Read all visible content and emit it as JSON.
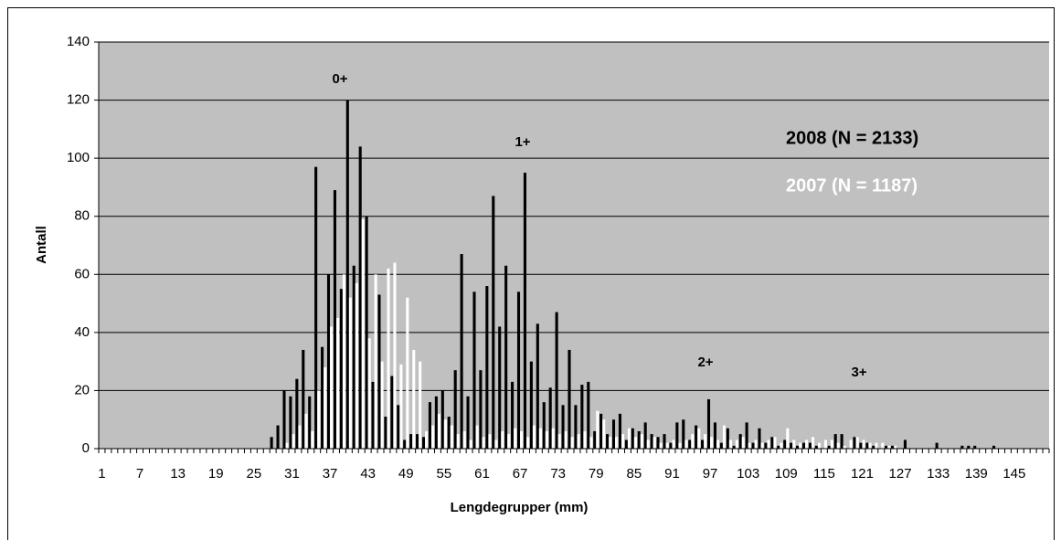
{
  "chart_data": {
    "type": "bar",
    "x_label": "Lengdegrupper (mm)",
    "y_label": "Antall",
    "categories": [
      "1",
      null,
      null,
      null,
      null,
      null,
      "7",
      null,
      null,
      null,
      null,
      null,
      "13",
      null,
      null,
      null,
      null,
      null,
      "19",
      null,
      null,
      null,
      null,
      null,
      "25",
      null,
      null,
      null,
      null,
      null,
      "31",
      null,
      null,
      null,
      null,
      null,
      "37",
      null,
      null,
      null,
      null,
      null,
      "43",
      null,
      null,
      null,
      null,
      null,
      "49",
      null,
      null,
      null,
      null,
      null,
      "55",
      null,
      null,
      null,
      null,
      null,
      "61",
      null,
      null,
      null,
      null,
      null,
      "67",
      null,
      null,
      null,
      null,
      null,
      "73",
      null,
      null,
      null,
      null,
      null,
      "79",
      null,
      null,
      null,
      null,
      null,
      "85",
      null,
      null,
      null,
      null,
      null,
      "91",
      null,
      null,
      null,
      null,
      null,
      "97",
      null,
      null,
      null,
      null,
      null,
      "103",
      null,
      null,
      null,
      null,
      null,
      "109",
      null,
      null,
      null,
      null,
      null,
      "115",
      null,
      null,
      null,
      null,
      null,
      "121",
      null,
      null,
      null,
      null,
      null,
      "127",
      null,
      null,
      null,
      null,
      null,
      "133",
      null,
      null,
      null,
      null,
      null,
      "139",
      null,
      null,
      null,
      null,
      null,
      "145",
      null,
      null,
      null,
      null,
      null
    ],
    "series": [
      {
        "name": "2008 (N = 2133)",
        "color": "#000000",
        "values": [
          0,
          0,
          0,
          0,
          0,
          0,
          0,
          0,
          0,
          0,
          0,
          0,
          0,
          0,
          0,
          0,
          0,
          0,
          0,
          0,
          0,
          0,
          0,
          0,
          0,
          0,
          0,
          4,
          8,
          20,
          18,
          24,
          34,
          18,
          97,
          35,
          60,
          89,
          55,
          120,
          63,
          104,
          80,
          23,
          53,
          11,
          25,
          15,
          3,
          5,
          5,
          4,
          16,
          18,
          20,
          11,
          27,
          67,
          18,
          54,
          27,
          56,
          87,
          42,
          63,
          23,
          54,
          95,
          30,
          43,
          16,
          21,
          47,
          15,
          34,
          15,
          22,
          23,
          6,
          12,
          5,
          10,
          12,
          3,
          7,
          6,
          9,
          5,
          4,
          5,
          2,
          9,
          10,
          3,
          8,
          3,
          17,
          9,
          2,
          7,
          1,
          5,
          9,
          2,
          7,
          2,
          4,
          1,
          3,
          2,
          1,
          2,
          2,
          1,
          0,
          1,
          5,
          5,
          0,
          4,
          2,
          2,
          1,
          0,
          1,
          1,
          0,
          3,
          0,
          0,
          0,
          0,
          2,
          0,
          0,
          0,
          1,
          1,
          1,
          0,
          0,
          1,
          0,
          0,
          0,
          0,
          0,
          0,
          0,
          0
        ]
      },
      {
        "name": "2007 (N = 1187)",
        "color": "#ffffff",
        "values": [
          0,
          0,
          0,
          0,
          0,
          0,
          0,
          0,
          0,
          0,
          0,
          0,
          0,
          0,
          0,
          0,
          0,
          0,
          0,
          0,
          0,
          0,
          0,
          0,
          0,
          0,
          0,
          0,
          0,
          2,
          5,
          8,
          12,
          6,
          20,
          28,
          42,
          45,
          60,
          52,
          57,
          79,
          38,
          60,
          30,
          62,
          64,
          29,
          52,
          34,
          30,
          6,
          8,
          12,
          10,
          8,
          5,
          6,
          3,
          8,
          4,
          5,
          3,
          6,
          5,
          7,
          6,
          4,
          8,
          7,
          6,
          7,
          5,
          6,
          4,
          5,
          6,
          4,
          13,
          10,
          4,
          4,
          5,
          7,
          4,
          5,
          3,
          4,
          2,
          2,
          3,
          2,
          3,
          5,
          7,
          5,
          4,
          3,
          8,
          3,
          3,
          4,
          2,
          3,
          2,
          3,
          4,
          2,
          7,
          3,
          2,
          3,
          4,
          2,
          3,
          3,
          2,
          1,
          3,
          4,
          3,
          2,
          2,
          2,
          1,
          1,
          0,
          0,
          0,
          0,
          0,
          0,
          0,
          0,
          0,
          0,
          0,
          0,
          0,
          0,
          0,
          0,
          0,
          0,
          0,
          0,
          0,
          0,
          0,
          0
        ]
      }
    ],
    "annotations": [
      "0+",
      "1+",
      "2+",
      "3+"
    ],
    "ylim": [
      0,
      140
    ],
    "yticks": [
      0,
      20,
      40,
      60,
      80,
      100,
      120,
      140
    ],
    "grid": true,
    "plot_background": "#c0c0c0"
  }
}
